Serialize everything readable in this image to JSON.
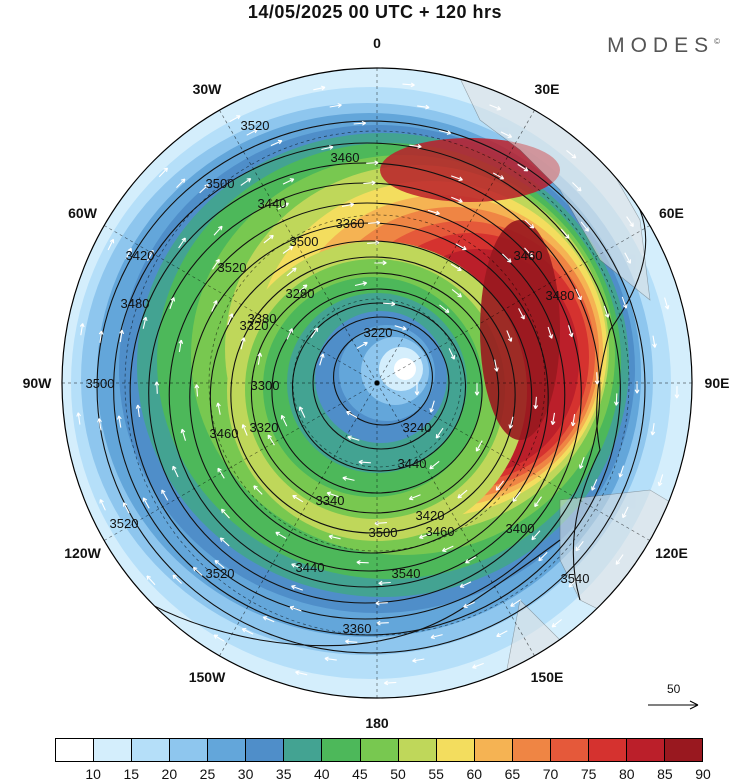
{
  "title": "14/05/2025  00 UTC  + 120 hrs",
  "brand": "MODES",
  "brand_mark": "©",
  "longitude_labels": [
    {
      "text": "0",
      "lon": 0
    },
    {
      "text": "30E",
      "lon": 30
    },
    {
      "text": "60E",
      "lon": 60
    },
    {
      "text": "90E",
      "lon": 90
    },
    {
      "text": "120E",
      "lon": 120
    },
    {
      "text": "150E",
      "lon": 150
    },
    {
      "text": "180",
      "lon": 180
    },
    {
      "text": "150W",
      "lon": 210
    },
    {
      "text": "120W",
      "lon": 240
    },
    {
      "text": "90W",
      "lon": 270
    },
    {
      "text": "60W",
      "lon": 300
    },
    {
      "text": "30W",
      "lon": 330
    }
  ],
  "contour_labels": [
    "3520",
    "3500",
    "3460",
    "3440",
    "3360",
    "3280",
    "3220",
    "3240",
    "3320",
    "3340",
    "3420",
    "3440",
    "3460",
    "3480",
    "3500",
    "3520",
    "3540",
    "3480",
    "3460",
    "3440",
    "3380",
    "3320",
    "3300",
    "3500",
    "3520",
    "3540",
    "3360",
    "3400",
    "3420",
    "3500",
    "3520",
    "3460"
  ],
  "colorbar": {
    "colors": [
      "#ffffff",
      "#d4eefc",
      "#b5dff9",
      "#8ec6ee",
      "#63a6da",
      "#4f8ec9",
      "#43a392",
      "#4db85a",
      "#78c850",
      "#bfd75a",
      "#f3dd5e",
      "#f5b353",
      "#ef8544",
      "#e5593a",
      "#d5322f",
      "#bb1f2a",
      "#99181f"
    ],
    "labels": [
      "10",
      "15",
      "20",
      "25",
      "30",
      "35",
      "40",
      "45",
      "50",
      "55",
      "60",
      "65",
      "70",
      "75",
      "80",
      "85",
      "90"
    ]
  },
  "vector_reference": "50"
}
